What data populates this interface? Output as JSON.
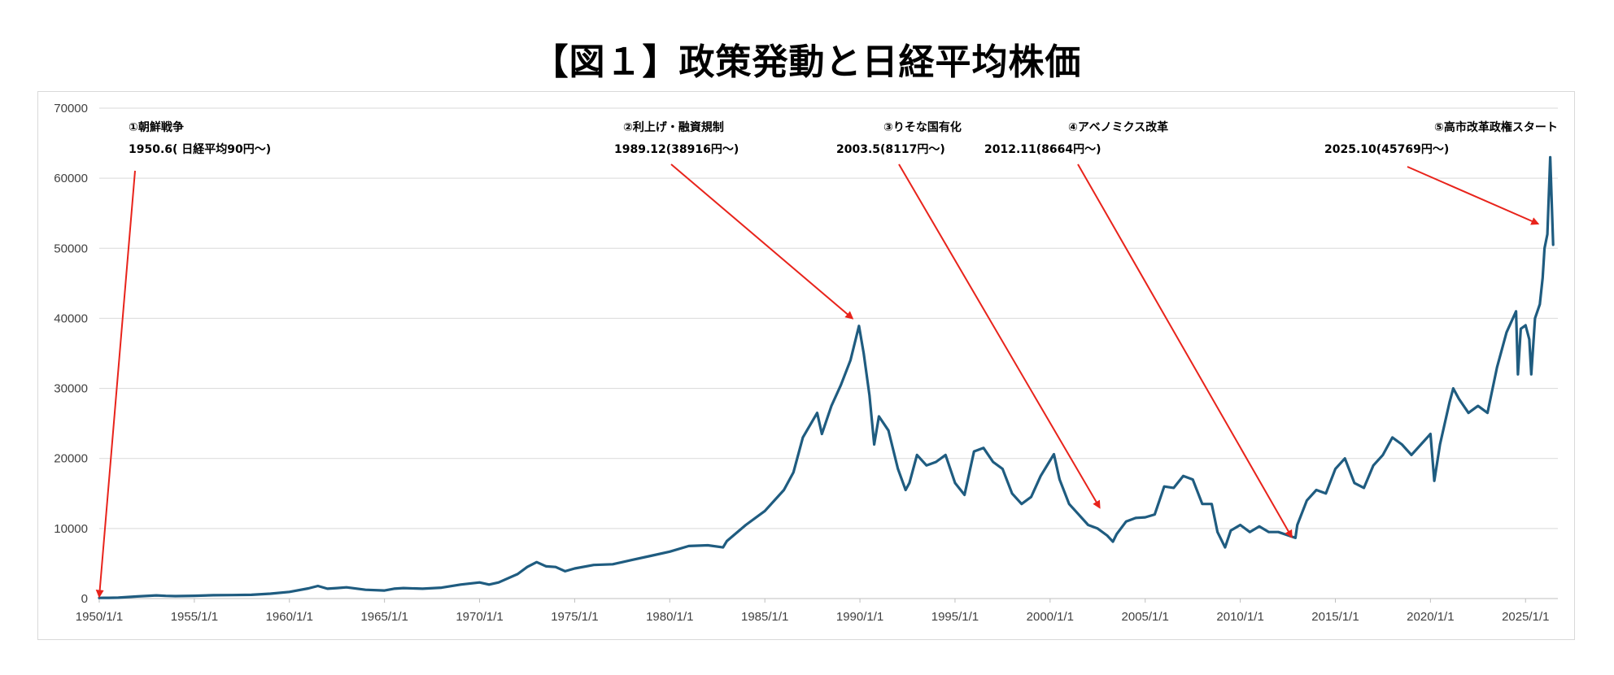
{
  "title": "【図１】政策発動と日経平均株価",
  "chart_data": {
    "type": "line",
    "title": "【図１】政策発動と日経平均株価",
    "xlabel": "",
    "ylabel": "",
    "ylim": [
      0,
      70000
    ],
    "yticks": [
      0,
      10000,
      20000,
      30000,
      40000,
      50000,
      60000,
      70000
    ],
    "yticklabels": [
      "0",
      "10000",
      "20000",
      "30000",
      "40000",
      "50000",
      "60000",
      "70000"
    ],
    "xlim": [
      1950.0,
      2026.7
    ],
    "xticks": [
      1950,
      1955,
      1960,
      1965,
      1970,
      1975,
      1980,
      1985,
      1990,
      1995,
      2000,
      2005,
      2010,
      2015,
      2020,
      2025
    ],
    "xticklabels": [
      "1950/1/1",
      "1955/1/1",
      "1960/1/1",
      "1965/1/1",
      "1970/1/1",
      "1975/1/1",
      "1980/1/1",
      "1985/1/1",
      "1990/1/1",
      "1995/1/1",
      "2000/1/1",
      "2005/1/1",
      "2010/1/1",
      "2015/1/1",
      "2020/1/1",
      "2025/1/1"
    ],
    "grid": true,
    "line_color": "#1f5c80",
    "arrow_color": "#e8231b",
    "series": [
      {
        "x": [
          1950.0,
          1950.5,
          1951.0,
          1952.0,
          1953.0,
          1953.5,
          1954.0,
          1955.0,
          1956.0,
          1957.0,
          1958.0,
          1959.0,
          1960.0,
          1961.0,
          1961.5,
          1962.0,
          1962.5,
          1963.0,
          1964.0,
          1965.0,
          1965.5,
          1966.0,
          1967.0,
          1968.0,
          1969.0,
          1970.0,
          1970.5,
          1971.0,
          1972.0,
          1972.5,
          1973.0,
          1973.5,
          1974.0,
          1974.5,
          1975.0,
          1976.0,
          1977.0,
          1978.0,
          1979.0,
          1980.0,
          1981.0,
          1982.0,
          1982.8,
          1983.0,
          1984.0,
          1985.0,
          1986.0,
          1986.5,
          1987.0,
          1987.75,
          1988.0,
          1988.5,
          1989.0,
          1989.5,
          1989.95,
          1990.2,
          1990.5,
          1990.75,
          1991.0,
          1991.5,
          1992.0,
          1992.4,
          1992.6,
          1993.0,
          1993.5,
          1994.0,
          1994.5,
          1995.0,
          1995.5,
          1996.0,
          1996.5,
          1997.0,
          1997.5,
          1998.0,
          1998.5,
          1999.0,
          1999.5,
          2000.2,
          2000.5,
          2001.0,
          2001.5,
          2002.0,
          2002.5,
          2003.0,
          2003.3,
          2003.5,
          2004.0,
          2004.5,
          2005.0,
          2005.5,
          2006.0,
          2006.5,
          2007.0,
          2007.5,
          2008.0,
          2008.5,
          2008.8,
          2009.2,
          2009.5,
          2010.0,
          2010.5,
          2011.0,
          2011.5,
          2012.0,
          2012.9,
          2013.0,
          2013.5,
          2014.0,
          2014.5,
          2015.0,
          2015.5,
          2016.0,
          2016.5,
          2017.0,
          2017.5,
          2018.0,
          2018.5,
          2019.0,
          2019.5,
          2020.0,
          2020.2,
          2020.5,
          2021.0,
          2021.2,
          2021.5,
          2022.0,
          2022.5,
          2023.0,
          2023.5,
          2024.0,
          2024.5,
          2024.6,
          2024.75,
          2025.0,
          2025.2,
          2025.3,
          2025.5,
          2025.75,
          2025.9,
          2026.0,
          2026.15,
          2026.3,
          2026.45
        ],
        "values": [
          90,
          100,
          130,
          300,
          450,
          380,
          350,
          400,
          480,
          500,
          530,
          700,
          950,
          1450,
          1800,
          1400,
          1500,
          1600,
          1250,
          1150,
          1400,
          1500,
          1400,
          1550,
          2000,
          2300,
          2000,
          2300,
          3500,
          4500,
          5200,
          4600,
          4500,
          3900,
          4300,
          4800,
          4900,
          5500,
          6100,
          6700,
          7500,
          7600,
          7300,
          8200,
          10500,
          12500,
          15500,
          18000,
          23000,
          26500,
          23500,
          27500,
          30500,
          34000,
          38916,
          35000,
          29000,
          22000,
          26000,
          24000,
          18500,
          15500,
          16500,
          20500,
          19000,
          19500,
          20500,
          16500,
          14800,
          21000,
          21500,
          19500,
          18500,
          15000,
          13500,
          14500,
          17500,
          20600,
          17000,
          13500,
          12000,
          10500,
          10000,
          9000,
          8117,
          9200,
          11000,
          11500,
          11600,
          12000,
          16000,
          15800,
          17500,
          17000,
          13500,
          13500,
          9500,
          7300,
          9700,
          10500,
          9500,
          10300,
          9500,
          9500,
          8664,
          10500,
          14000,
          15500,
          15000,
          18500,
          20000,
          16500,
          15800,
          19000,
          20500,
          23000,
          22000,
          20500,
          22000,
          23500,
          16800,
          22000,
          28000,
          30000,
          28500,
          26500,
          27500,
          26500,
          33000,
          38000,
          41000,
          32000,
          38500,
          39000,
          37000,
          32000,
          40000,
          42000,
          45769,
          50000,
          52000,
          63000,
          50500
        ]
      }
    ],
    "annotations": [
      {
        "label": "①朝鮮戦争",
        "detail": "1950.6( 日経平均90円～)",
        "target_x": 1950.0,
        "target_y": 300
      },
      {
        "label": "②利上げ・融資規制",
        "detail": "1989.12(38916円～)",
        "target_x": 1989.6,
        "target_y": 40000
      },
      {
        "label": "③りそな国有化",
        "detail": "2003.5(8117円～)",
        "target_x": 2002.6,
        "target_y": 13000
      },
      {
        "label": "④アベノミクス改革",
        "detail": "2012.11(8664円～)",
        "target_x": 2012.7,
        "target_y": 8800
      },
      {
        "label": "⑤高市改革政権スタート",
        "detail": "2025.10(45769円～)",
        "target_x": 2025.65,
        "target_y": 53500
      }
    ]
  }
}
